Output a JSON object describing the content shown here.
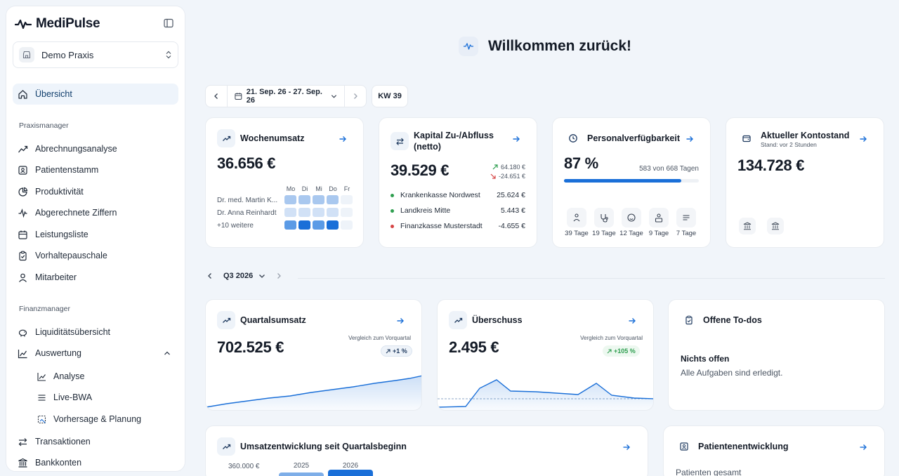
{
  "app": {
    "name": "MediPulse",
    "practice": "Demo Praxis"
  },
  "sidebar": {
    "overview": "Übersicht",
    "section_praxis": "Praxismanager",
    "praxis_items": [
      "Abrechnungsanalyse",
      "Patientenstamm",
      "Produktivität",
      "Abgerechnete Ziffern",
      "Leistungsliste",
      "Vorhaltepauschale",
      "Mitarbeiter"
    ],
    "section_finanz": "Finanzmanager",
    "finanz_items": [
      "Liquiditätsübersicht",
      "Auswertung"
    ],
    "sub_items": [
      "Analyse",
      "Live-BWA",
      "Vorhersage & Planung"
    ],
    "bottom_items": [
      "Transaktionen",
      "Bankkonten"
    ]
  },
  "header": {
    "title": "Willkommen zurück!"
  },
  "datebar": {
    "range": "21. Sep. 26 - 27. Sep. 26",
    "week": "KW 39"
  },
  "cards": {
    "wochenumsatz": {
      "title": "Wochenumsatz",
      "value": "36.656 €",
      "days": [
        "Mo",
        "Di",
        "Mi",
        "Do",
        "Fr"
      ],
      "rows": [
        "Dr. med. Martin K...",
        "Dr. Anna Reinhardt",
        "+10 weitere"
      ],
      "heat_colors": [
        [
          "#a9c8ef",
          "#a9c8ef",
          "#a9c8ef",
          "#a9c8ef",
          "#eef3f9"
        ],
        [
          "#d1e1f6",
          "#d1e1f6",
          "#d1e1f6",
          "#d1e1f6",
          "#eef3f9"
        ],
        [
          "#5b9be6",
          "#1a6fd8",
          "#5b9be6",
          "#1a6fd8",
          "#eef3f9"
        ]
      ]
    },
    "kapital": {
      "title_line1": "Kapital Zu-/Abfluss",
      "title_line2": "(netto)",
      "value": "39.529 €",
      "in": "64.180 €",
      "out": "-24.651 €",
      "rows": [
        {
          "name": "Krankenkasse Nordwest",
          "amount": "25.624 €",
          "color": "#2e9e4f"
        },
        {
          "name": "Landkreis Mitte",
          "amount": "5.443 €",
          "color": "#2e9e4f"
        },
        {
          "name": "Finanzkasse Musterstadt",
          "amount": "-4.655 €",
          "color": "#d64545"
        }
      ]
    },
    "personal": {
      "title": "Personalverfügbarkeit",
      "value": "87 %",
      "detail": "583 von 668 Tagen",
      "progress": 0.87,
      "staff": [
        {
          "icon": "doctor-icon",
          "label": "39 Tage"
        },
        {
          "icon": "stethoscope-icon",
          "label": "19 Tage"
        },
        {
          "icon": "nurse-icon",
          "label": "12 Tage"
        },
        {
          "icon": "admin-icon",
          "label": "9 Tage"
        },
        {
          "icon": "list-icon",
          "label": "7 Tage"
        }
      ]
    },
    "konto": {
      "title": "Aktueller Kontostand",
      "subtitle": "Stand: vor 2 Stunden",
      "value": "134.728 €"
    },
    "quartal": {
      "title": "Quartalsumsatz",
      "value": "702.525 €",
      "compare": "Vergleich zum Vorquartal",
      "badge": "+1 %"
    },
    "ueberschuss": {
      "title": "Überschuss",
      "value": "2.495 €",
      "compare": "Vergleich zum Vorquartal",
      "badge": "+105 %"
    },
    "todos": {
      "title": "Offene To-dos",
      "empty_title": "Nichts offen",
      "empty_text": "Alle Aufgaben sind erledigt."
    },
    "umsatz": {
      "title": "Umsatzentwicklung seit Quartalsbeginn",
      "ytick": "360.000 €",
      "years": [
        "2025",
        "2026"
      ]
    },
    "patient": {
      "title": "Patientenentwicklung",
      "label": "Patienten gesamt"
    }
  },
  "quarter": {
    "label": "Q3 2026"
  },
  "colors": {
    "accent": "#1a6fd8",
    "positive": "#2e9e4f",
    "negative": "#d64545"
  }
}
